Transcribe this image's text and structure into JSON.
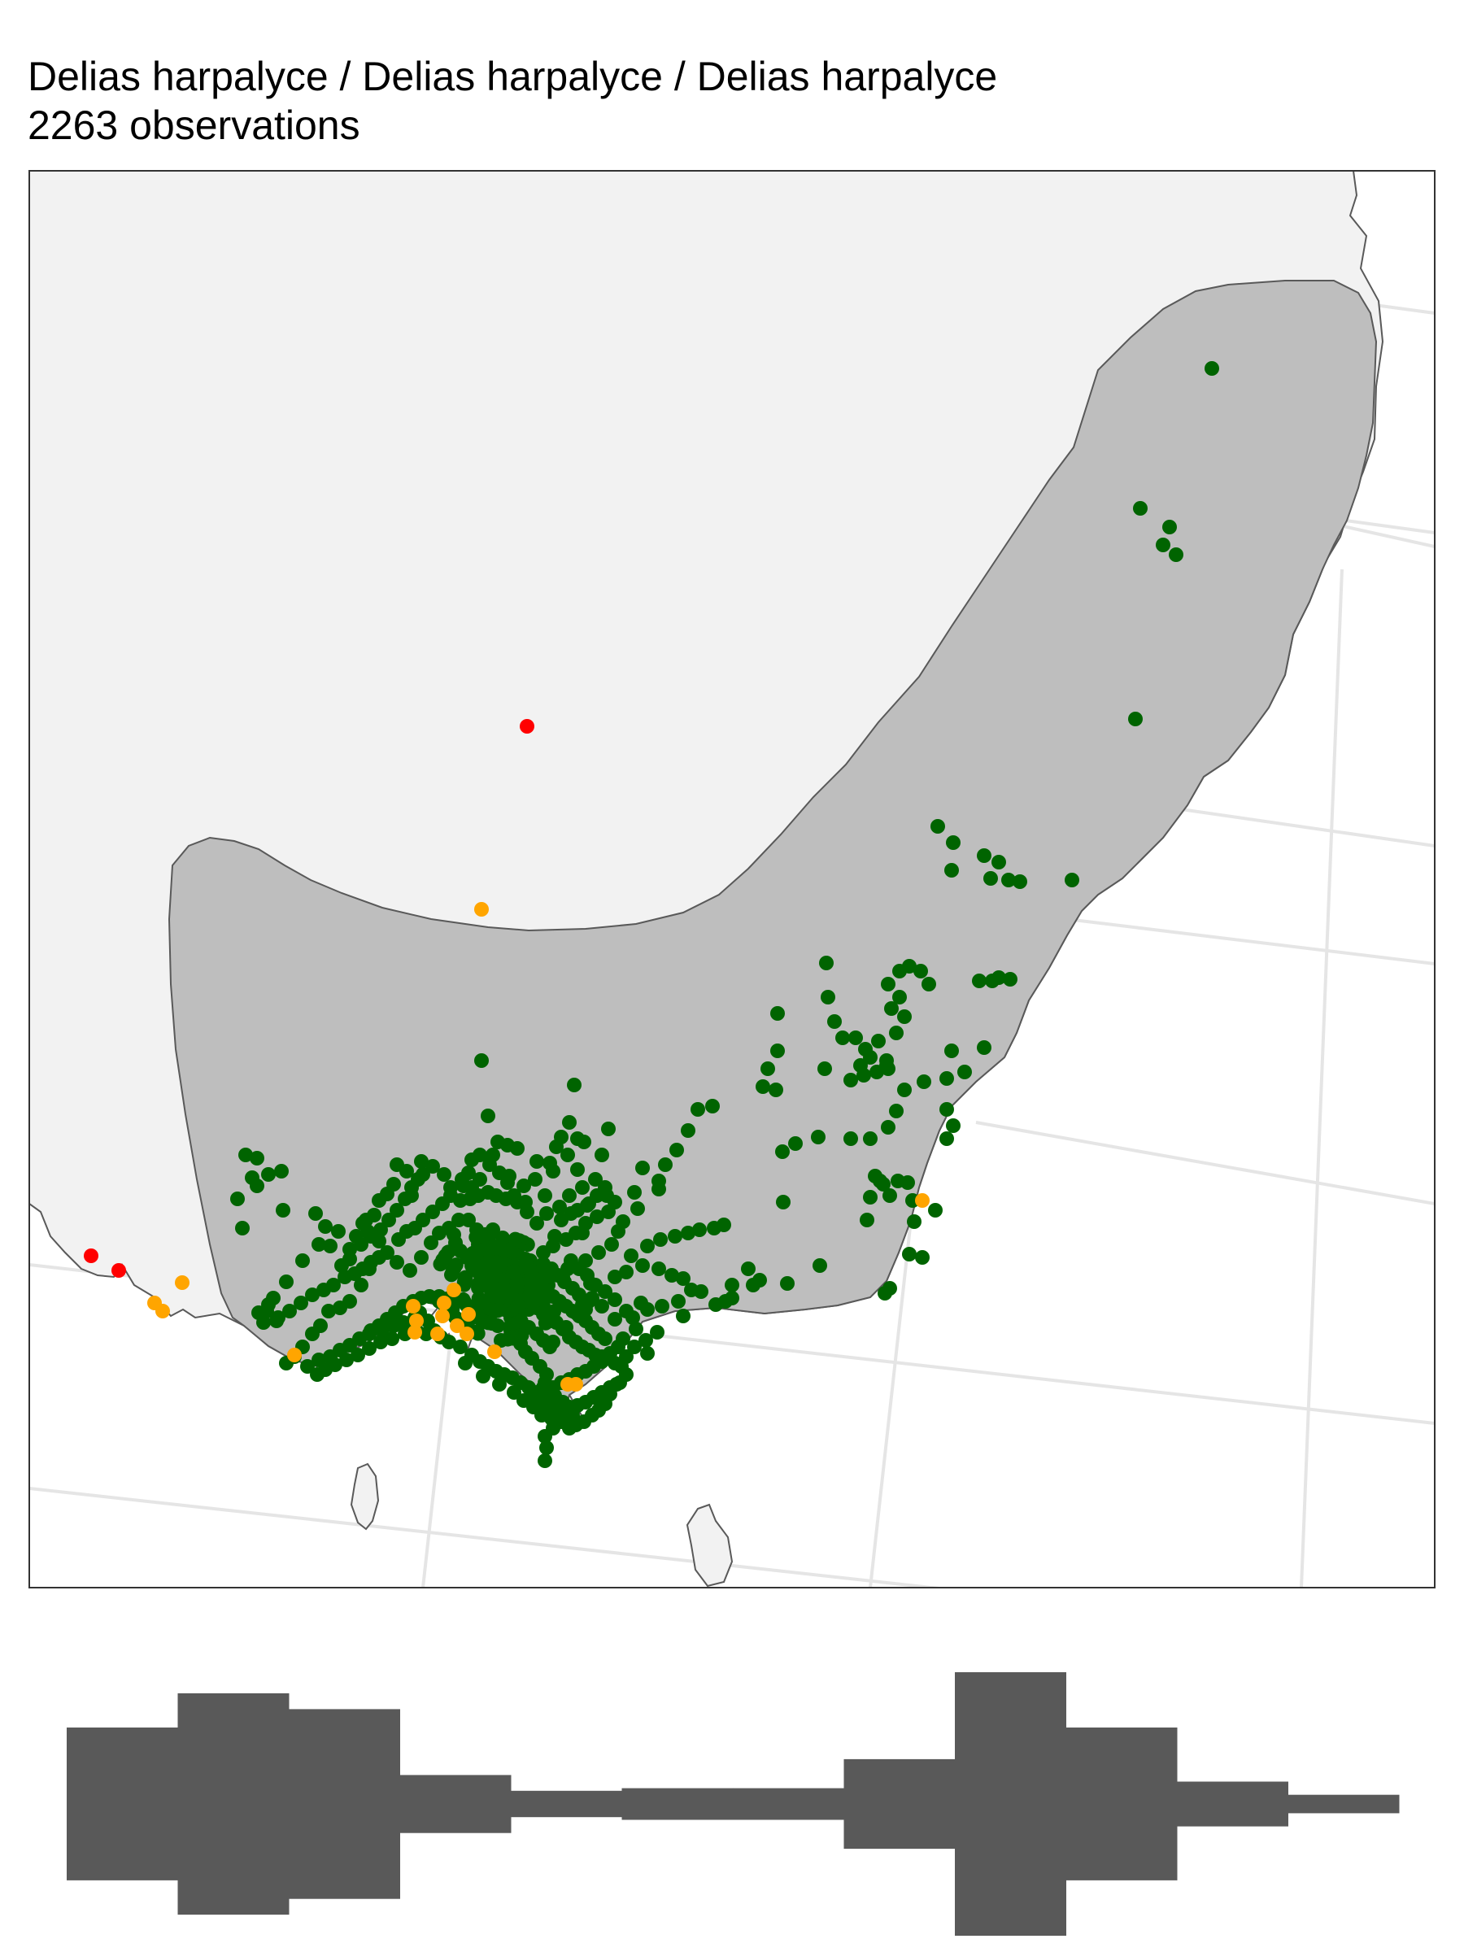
{
  "title": "Delias harpalyce / Delias harpalyce / Delias harpalyce",
  "subtitle": "2263 observations",
  "colors": {
    "background": "#ffffff",
    "land": "#f2f2f2",
    "range": "#bebebe",
    "coast": "#595959",
    "grid": "#e5e5e5",
    "primary_points": "#006400",
    "secondary_points": "#ffa500",
    "outlier_points": "#ff0000",
    "histogram": "#595959"
  },
  "histogram_relative": [
    0.58,
    0.84,
    0.72,
    0.22,
    0.1,
    0.12,
    0.12,
    0.34,
    1.0,
    0.58,
    0.17,
    0.07
  ]
}
